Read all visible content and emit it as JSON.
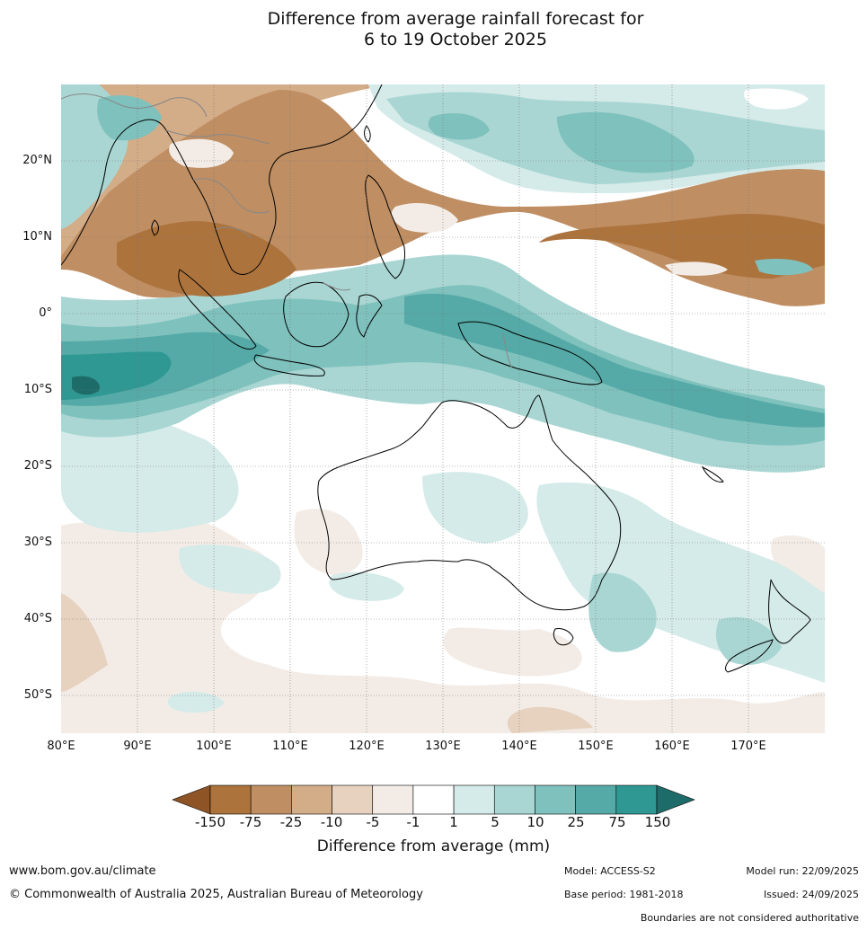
{
  "title": {
    "line1": "Difference from average rainfall forecast for",
    "line2": "6 to 19 October 2025"
  },
  "map": {
    "latitude_labels": [
      "20°N",
      "10°N",
      "0°",
      "10°S",
      "20°S",
      "30°S",
      "40°S",
      "50°S"
    ],
    "longitude_labels": [
      "80°E",
      "90°E",
      "100°E",
      "110°E",
      "120°E",
      "130°E",
      "140°E",
      "150°E",
      "160°E",
      "170°E"
    ],
    "colors": {
      "land_outline": "#000000",
      "boundary_lines": "#888888",
      "grid_lines": "#777777"
    }
  },
  "legend": {
    "title": "Difference from average (mm)",
    "tick_labels": [
      "-150",
      "-75",
      "-25",
      "-10",
      "-5",
      "-1",
      "1",
      "5",
      "10",
      "25",
      "75",
      "150"
    ],
    "colors": [
      "#8f5426",
      "#ac733d",
      "#bf8e63",
      "#d3ac88",
      "#e6d2bf",
      "#f3ece6",
      "#ffffff",
      "#d4ebe9",
      "#a9d6d3",
      "#7fc1bd",
      "#55aaa7",
      "#2f9893",
      "#1e6c69"
    ]
  },
  "footer": {
    "website": "www.bom.gov.au/climate",
    "copyright": "© Commonwealth of Australia 2025, Australian Bureau of Meteorology",
    "model": "Model: ACCESS-S2",
    "base_period": "Base period: 1981-2018",
    "model_run": "Model run: 22/09/2025",
    "issued": "Issued: 24/09/2025",
    "disclaimer": "Boundaries are not considered authoritative"
  }
}
